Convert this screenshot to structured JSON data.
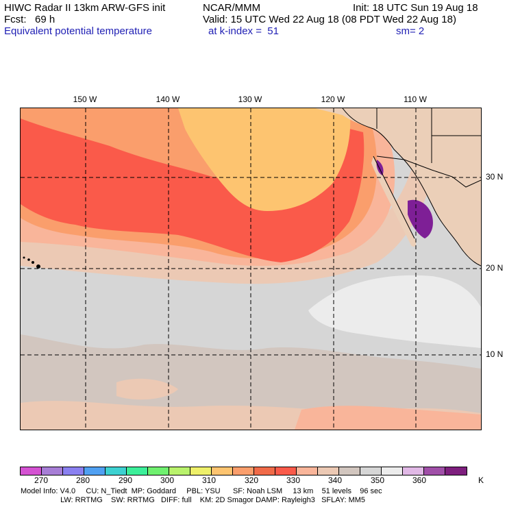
{
  "header": {
    "line1_left": "HIWC Radar II 13km ARW-GFS init",
    "line1_center": "NCAR/MMM",
    "line1_right": "Init: 18 UTC Sun 19 Aug 18",
    "line2_left": "Fcst:   69 h",
    "line2_right": "Valid: 15 UTC Wed 22 Aug 18 (08 PDT Wed 22 Aug 18)",
    "line3_field": "Equivalent potential temperature",
    "line3_level": "at k-index =  51",
    "line3_smooth": "sm= 2"
  },
  "map": {
    "lon_labels": [
      "150 W",
      "140 W",
      "130 W",
      "120 W",
      "110 W"
    ],
    "lat_labels": [
      "30 N",
      "20 N",
      "10 N"
    ],
    "colors": {
      "band_320": "#fdc470",
      "band_330": "#fa9e6c",
      "band_335": "#fa5a4a",
      "band_340": "#f9b59a",
      "band_345": "#ecc9b4",
      "band_350": "#d2c6bf",
      "band_355": "#d6d6d6",
      "band_360": "#ececec",
      "land": "#ebcfb8",
      "purple_high": "#7e1f96"
    }
  },
  "colorbar": {
    "colors": [
      "#d452d2",
      "#a77ed6",
      "#8a80f0",
      "#50a0f2",
      "#3dd1d1",
      "#3cef9a",
      "#6ff06f",
      "#b9f26c",
      "#eef06a",
      "#fdc470",
      "#fa9e6c",
      "#f06a48",
      "#fa5a4a",
      "#f9b59a",
      "#ecc9b4",
      "#d2c6bf",
      "#d6d6d6",
      "#ececec",
      "#e1b9e6",
      "#a04fa8",
      "#7e1f7e"
    ],
    "ticks": [
      "270",
      "280",
      "290",
      "300",
      "310",
      "320",
      "330",
      "340",
      "350",
      "360"
    ],
    "unit": "K"
  },
  "footer": {
    "line1": "Model Info: V4.0     CU: N_Tiedt  MP: Goddard     PBL: YSU      SF: Noah LSM     13 km    51 levels    96 sec",
    "line2": "                   LW: RRTMG    SW: RRTMG   DIFF: full    KM: 2D Smagor DAMP: Rayleigh3   SFLAY: MM5"
  }
}
